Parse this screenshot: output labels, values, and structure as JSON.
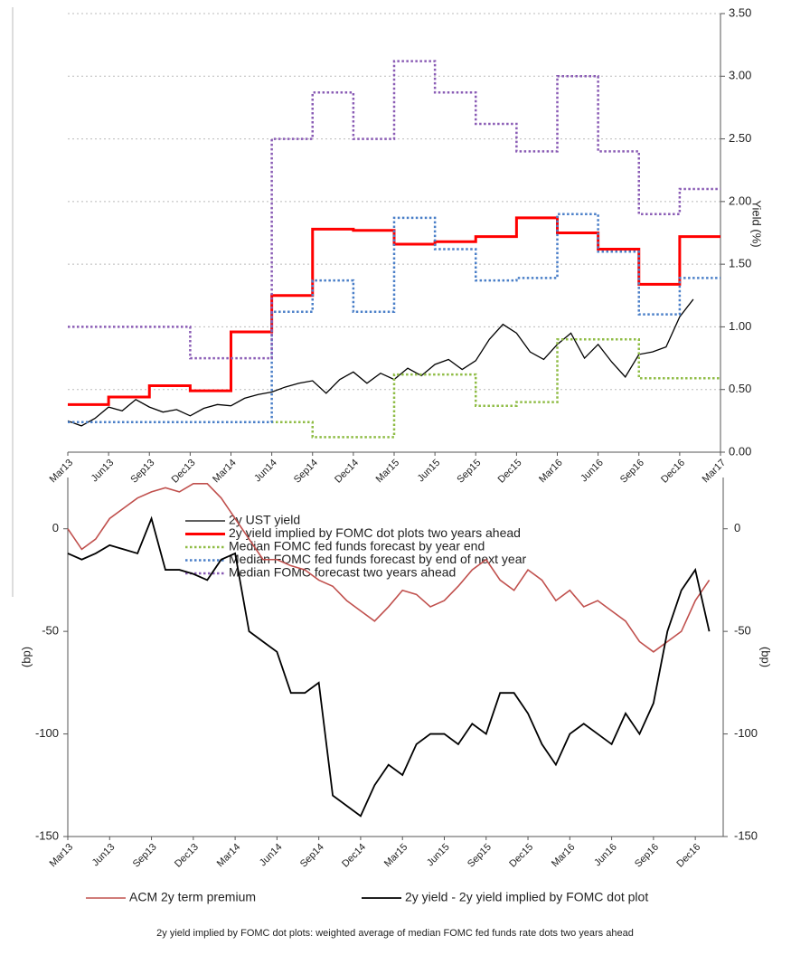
{
  "chart_data": [
    {
      "type": "line",
      "y_label": "Yield (%)",
      "xlim": [
        0,
        48
      ],
      "xticks": [
        {
          "value": 0,
          "label": "Mar13"
        },
        {
          "value": 3,
          "label": "Jun13"
        },
        {
          "value": 6,
          "label": "Sep13"
        },
        {
          "value": 9,
          "label": "Dec13"
        },
        {
          "value": 12,
          "label": "Mar14"
        },
        {
          "value": 15,
          "label": "Jun14"
        },
        {
          "value": 18,
          "label": "Sep14"
        },
        {
          "value": 21,
          "label": "Dec14"
        },
        {
          "value": 24,
          "label": "Mar15"
        },
        {
          "value": 27,
          "label": "Jun15"
        },
        {
          "value": 30,
          "label": "Sep15"
        },
        {
          "value": 33,
          "label": "Dec15"
        },
        {
          "value": 36,
          "label": "Mar16"
        },
        {
          "value": 39,
          "label": "Jun16"
        },
        {
          "value": 42,
          "label": "Sep16"
        },
        {
          "value": 45,
          "label": "Dec16"
        },
        {
          "value": 48,
          "label": "Mar17"
        }
      ],
      "ylim": [
        0,
        3.5
      ],
      "yticks": [
        {
          "value": 0,
          "label": "0.00"
        },
        {
          "value": 0.5,
          "label": "0.50"
        },
        {
          "value": 1,
          "label": "1.00"
        },
        {
          "value": 1.5,
          "label": "1.50"
        },
        {
          "value": 2,
          "label": "2.00"
        },
        {
          "value": 2.5,
          "label": "2.50"
        },
        {
          "value": 3,
          "label": "3.00"
        },
        {
          "value": 3.5,
          "label": "3.50"
        }
      ],
      "grid": true,
      "legend": "bottom",
      "series": [
        {
          "name": "2y UST yield",
          "color": "#000000",
          "width": 1.3,
          "dash": "solid",
          "step": false,
          "x": [
            0,
            1,
            2,
            3,
            4,
            5,
            6,
            7,
            8,
            9,
            10,
            11,
            12,
            13,
            14,
            15,
            16,
            17,
            18,
            19,
            20,
            21,
            22,
            23,
            24,
            25,
            26,
            27,
            28,
            29,
            30,
            31,
            32,
            33,
            34,
            35,
            36,
            37,
            38,
            39,
            40,
            41,
            42,
            43,
            44,
            45,
            46
          ],
          "values": [
            0.25,
            0.21,
            0.27,
            0.36,
            0.33,
            0.42,
            0.36,
            0.32,
            0.34,
            0.29,
            0.35,
            0.38,
            0.37,
            0.43,
            0.46,
            0.48,
            0.52,
            0.55,
            0.57,
            0.47,
            0.58,
            0.64,
            0.55,
            0.63,
            0.58,
            0.67,
            0.61,
            0.7,
            0.74,
            0.66,
            0.73,
            0.9,
            1.02,
            0.95,
            0.8,
            0.74,
            0.86,
            0.95,
            0.75,
            0.86,
            0.72,
            0.6,
            0.78,
            0.8,
            0.84,
            1.08,
            1.22
          ]
        },
        {
          "name": "2y yield implied by FOMC dot plots two years ahead",
          "color": "#ff0000",
          "width": 3,
          "dash": "solid",
          "step": true,
          "x": [
            0,
            3,
            6,
            9,
            12,
            15,
            18,
            21,
            24,
            27,
            30,
            33,
            36,
            39,
            42,
            45
          ],
          "values": [
            0.38,
            0.44,
            0.53,
            0.49,
            0.96,
            1.25,
            1.78,
            1.77,
            1.66,
            1.68,
            1.72,
            1.87,
            1.75,
            1.62,
            1.34,
            1.72
          ]
        },
        {
          "name": "Median FOMC fed funds forecast by year end",
          "color": "#8fbc45",
          "width": 2.5,
          "dash": "dotted",
          "step": true,
          "x": [
            0,
            3,
            6,
            9,
            12,
            15,
            18,
            21,
            24,
            27,
            30,
            33,
            36,
            39,
            42,
            45
          ],
          "values": [
            0.24,
            0.24,
            0.24,
            0.24,
            0.24,
            0.24,
            0.12,
            0.12,
            0.62,
            0.62,
            0.37,
            0.4,
            0.9,
            0.9,
            0.59,
            0.59
          ]
        },
        {
          "name": "Median FOMC fed funds forecast by end of next year",
          "color": "#4a7fc8",
          "width": 2.5,
          "dash": "dotted",
          "step": true,
          "x": [
            0,
            3,
            6,
            9,
            12,
            15,
            18,
            21,
            24,
            27,
            30,
            33,
            36,
            39,
            42,
            45
          ],
          "values": [
            0.24,
            0.24,
            0.24,
            0.24,
            0.24,
            1.12,
            1.37,
            1.12,
            1.87,
            1.62,
            1.37,
            1.39,
            1.9,
            1.6,
            1.1,
            1.39
          ]
        },
        {
          "name": "Median FOMC forecast two years ahead",
          "color": "#8a5cb5",
          "width": 2.5,
          "dash": "dotted",
          "step": true,
          "x": [
            0,
            3,
            6,
            9,
            12,
            15,
            18,
            21,
            24,
            27,
            30,
            33,
            36,
            39,
            42,
            45
          ],
          "values": [
            1.0,
            1.0,
            1.0,
            0.75,
            0.75,
            2.5,
            2.87,
            2.5,
            3.12,
            2.87,
            2.62,
            2.4,
            3.0,
            2.4,
            1.9,
            2.1
          ]
        }
      ]
    },
    {
      "type": "line",
      "y_label": "(bp)",
      "y2_label": "(bp)",
      "xlim": [
        0,
        47
      ],
      "xticks": [
        {
          "value": 0,
          "label": "Mar13"
        },
        {
          "value": 3,
          "label": "Jun13"
        },
        {
          "value": 6,
          "label": "Sep13"
        },
        {
          "value": 9,
          "label": "Dec13"
        },
        {
          "value": 12,
          "label": "Mar14"
        },
        {
          "value": 15,
          "label": "Jun14"
        },
        {
          "value": 18,
          "label": "Sep14"
        },
        {
          "value": 21,
          "label": "Dec14"
        },
        {
          "value": 24,
          "label": "Mar15"
        },
        {
          "value": 27,
          "label": "Jun15"
        },
        {
          "value": 30,
          "label": "Sep15"
        },
        {
          "value": 33,
          "label": "Dec15"
        },
        {
          "value": 36,
          "label": "Mar16"
        },
        {
          "value": 39,
          "label": "Jun16"
        },
        {
          "value": 42,
          "label": "Sep16"
        },
        {
          "value": 45,
          "label": "Dec16"
        }
      ],
      "ylim": [
        -150,
        25
      ],
      "yticks": [
        0,
        -50,
        -100,
        -150
      ],
      "y2lim": [
        -150,
        25
      ],
      "y2ticks": [
        0,
        -50,
        -100,
        -150
      ],
      "grid": false,
      "legend": "bottom",
      "series": [
        {
          "name": "ACM 2y term premium",
          "color": "#c0504d",
          "width": 1.6,
          "dash": "solid",
          "step": false,
          "x": [
            0,
            1,
            2,
            3,
            4,
            5,
            6,
            7,
            8,
            9,
            10,
            11,
            12,
            13,
            14,
            15,
            16,
            17,
            18,
            19,
            20,
            21,
            22,
            23,
            24,
            25,
            26,
            27,
            28,
            29,
            30,
            31,
            32,
            33,
            34,
            35,
            36,
            37,
            38,
            39,
            40,
            41,
            42,
            43,
            44,
            45,
            46
          ],
          "values": [
            0,
            -10,
            -5,
            5,
            10,
            15,
            18,
            20,
            18,
            22,
            22,
            15,
            5,
            -5,
            -15,
            -15,
            -18,
            -20,
            -25,
            -28,
            -35,
            -40,
            -45,
            -38,
            -30,
            -32,
            -38,
            -35,
            -28,
            -20,
            -15,
            -25,
            -30,
            -20,
            -25,
            -35,
            -30,
            -38,
            -35,
            -40,
            -45,
            -55,
            -60,
            -55,
            -50,
            -35,
            -25
          ]
        },
        {
          "name": "2y yield - 2y yield implied by FOMC dot plot",
          "color": "#000000",
          "width": 1.8,
          "dash": "solid",
          "step": false,
          "x": [
            0,
            1,
            2,
            3,
            4,
            5,
            6,
            7,
            8,
            9,
            10,
            11,
            12,
            13,
            14,
            15,
            16,
            17,
            18,
            19,
            20,
            21,
            22,
            23,
            24,
            25,
            26,
            27,
            28,
            29,
            30,
            31,
            32,
            33,
            34,
            35,
            36,
            37,
            38,
            39,
            40,
            41,
            42,
            43,
            44,
            45,
            46
          ],
          "values": [
            -12,
            -15,
            -12,
            -8,
            -10,
            -12,
            5,
            -20,
            -20,
            -22,
            -25,
            -15,
            -12,
            -50,
            -55,
            -60,
            -80,
            -80,
            -75,
            -130,
            -135,
            -140,
            -125,
            -115,
            -120,
            -105,
            -100,
            -100,
            -105,
            -95,
            -100,
            -80,
            -80,
            -90,
            -105,
            -115,
            -100,
            -95,
            -100,
            -105,
            -90,
            -100,
            -85,
            -50,
            -30,
            -20,
            -50
          ]
        }
      ]
    }
  ],
  "footnote": "2y yield implied by FOMC dot plots: weighted average of median FOMC fed funds rate dots two years ahead"
}
